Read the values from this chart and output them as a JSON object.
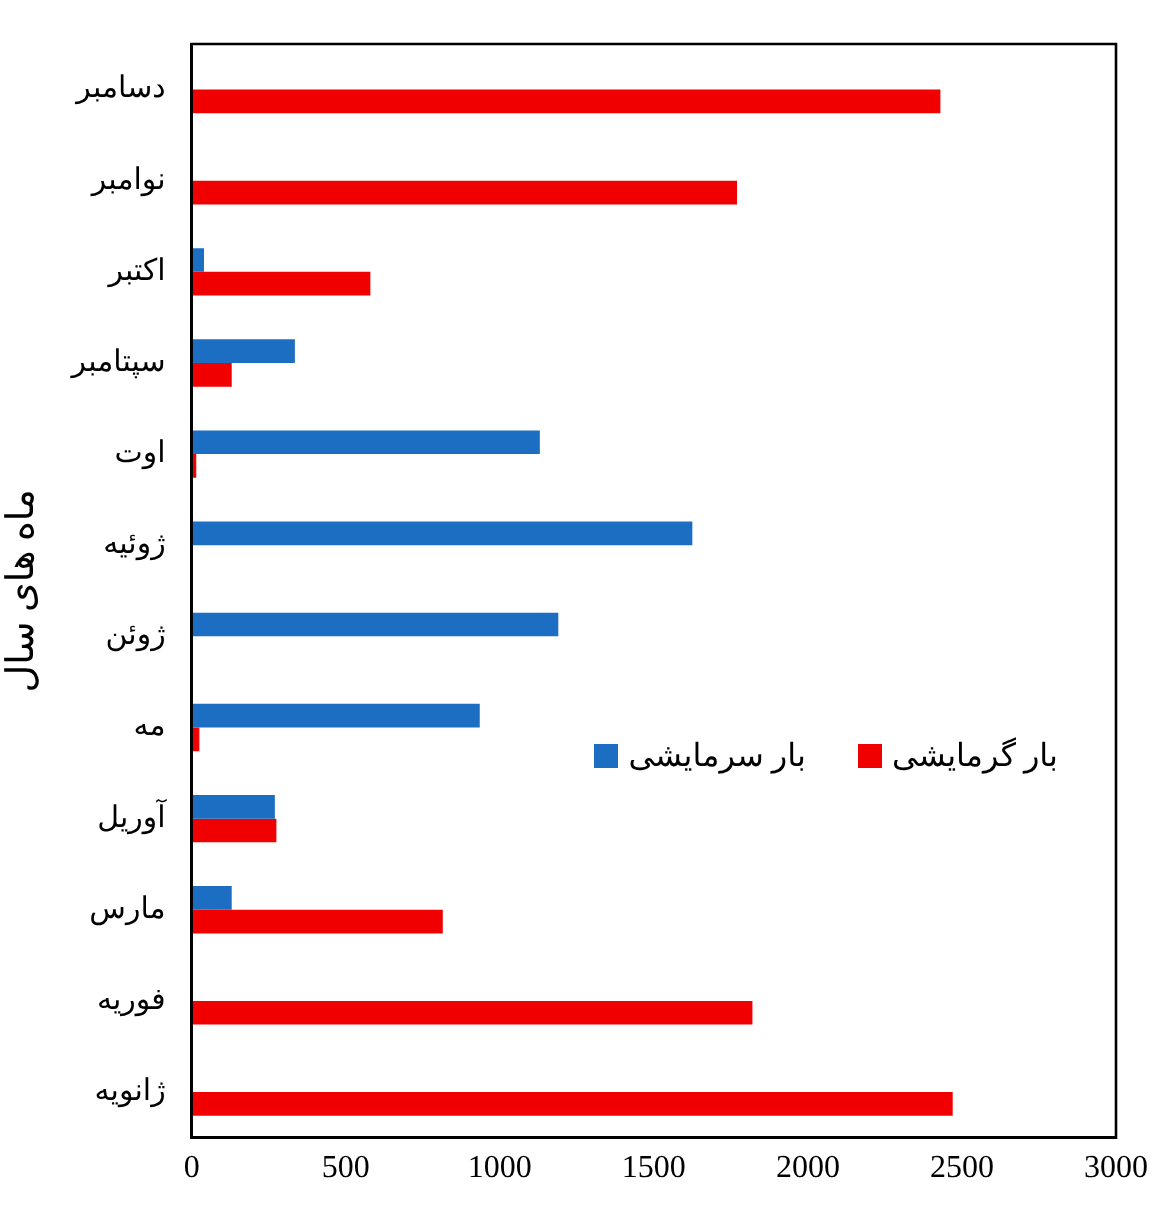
{
  "chart_data": {
    "type": "bar",
    "orientation": "horizontal",
    "ylabel": "ماه های سال",
    "categories": [
      "دسامبر",
      "نوامبر",
      "اکتبر",
      "سپتامبر",
      "اوت",
      "ژوئیه",
      "ژوئن",
      "مه",
      "آوریل",
      "مارس",
      "فوریه",
      "ژانویه"
    ],
    "series": [
      {
        "name": "بار سرمایشی",
        "color": "#1b6ec2",
        "values": [
          0,
          0,
          40,
          335,
          1130,
          1625,
          1190,
          935,
          270,
          130,
          0,
          0
        ]
      },
      {
        "name": "بار گرمایشی",
        "color": "#f00000",
        "values": [
          2430,
          1770,
          580,
          130,
          15,
          0,
          0,
          25,
          275,
          815,
          1820,
          2470
        ]
      }
    ],
    "xlim": [
      0,
      3000
    ],
    "xticks": [
      0,
      500,
      1000,
      1500,
      2000,
      2500,
      3000
    ],
    "grid": false,
    "legend": "right"
  }
}
